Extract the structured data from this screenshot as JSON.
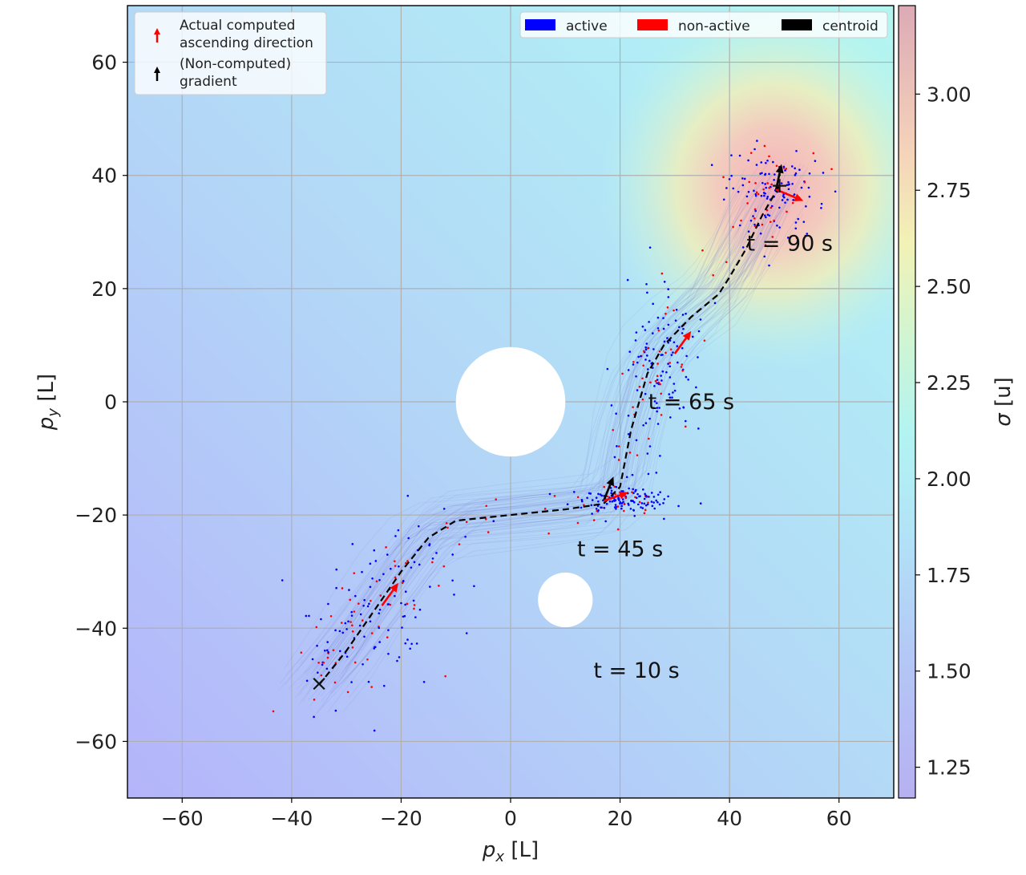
{
  "chart_data": {
    "type": "scatter",
    "xlabel": "p_x [L]",
    "ylabel": "p_y [L]",
    "colorbar_label": "σ [u]",
    "xlim": [
      -70,
      70
    ],
    "ylim": [
      -70,
      70
    ],
    "x_ticks": [
      -60,
      -40,
      -20,
      0,
      20,
      40,
      60
    ],
    "y_ticks": [
      -60,
      -40,
      -20,
      0,
      20,
      40,
      60
    ],
    "x_tick_labels": [
      "−60",
      "−40",
      "−20",
      "0",
      "20",
      "40",
      "60"
    ],
    "y_tick_labels": [
      "−60",
      "−40",
      "−20",
      "0",
      "20",
      "40",
      "60"
    ],
    "colorbar_range": [
      1.17,
      3.23
    ],
    "colorbar_ticks": [
      1.25,
      1.5,
      1.75,
      2.0,
      2.25,
      2.5,
      2.75,
      3.0
    ],
    "colorbar_tick_labels": [
      "1.25",
      "1.50",
      "1.75",
      "2.00",
      "2.25",
      "2.50",
      "2.75",
      "3.00"
    ],
    "grid": true,
    "field_peak": {
      "x": 48,
      "y": 38
    },
    "obstacles": [
      {
        "x": 0,
        "y": 0,
        "r": 10
      },
      {
        "x": 10,
        "y": -35,
        "r": 5
      }
    ],
    "start_marker": {
      "x": -35,
      "y": -50,
      "symbol": "×"
    },
    "centroid_path": {
      "name": "centroid",
      "x": [
        -35,
        -30,
        -25,
        -20,
        -15,
        -10,
        0,
        10,
        17,
        20,
        22,
        25,
        28,
        33,
        38,
        40,
        43,
        46,
        49
      ],
      "y": [
        -50,
        -44,
        -37,
        -30,
        -24,
        -21,
        -20,
        -19,
        -18,
        -15,
        -5,
        5,
        10,
        15,
        19,
        22,
        27,
        33,
        38
      ]
    },
    "snapshots": [
      {
        "label": "t = 10 s",
        "label_x": 23,
        "label_y": -47.5,
        "center_x": -25,
        "center_y": -38,
        "spread_x": 5,
        "spread_y": 5,
        "computed_direction": {
          "x": -23.5,
          "y": -36,
          "dx": 3,
          "dy": 4
        }
      },
      {
        "label": "t = 45 s",
        "label_x": 20,
        "label_y": -26,
        "center_x": 20,
        "center_y": -17.5,
        "spread_x": 4.5,
        "spread_y": 1.2,
        "computed_direction": {
          "x": 17,
          "y": -17.5,
          "dx": 4.5,
          "dy": 1.5
        },
        "gradient": {
          "x": 17,
          "y": -17.5,
          "dx": 1.8,
          "dy": 4.3
        }
      },
      {
        "label": "t = 65 s",
        "label_x": 33,
        "label_y": 0,
        "center_x": 27,
        "center_y": 7,
        "spread_x": 4,
        "spread_y": 6,
        "computed_direction": {
          "x": 30,
          "y": 8.5,
          "dx": 3,
          "dy": 4
        }
      },
      {
        "label": "t = 90 s",
        "label_x": 51,
        "label_y": 28,
        "center_x": 48,
        "center_y": 37,
        "spread_x": 5,
        "spread_y": 4,
        "computed_direction": {
          "x": 48.5,
          "y": 37.5,
          "dx": 5,
          "dy": -2
        },
        "gradient": {
          "x": 48.5,
          "y": 37.5,
          "dx": 1,
          "dy": 4.5
        }
      }
    ],
    "legend_left": {
      "placement": "top-left",
      "entries": [
        {
          "label_line1": "Actual computed",
          "label_line2": "ascending direction",
          "color": "#ff0000"
        },
        {
          "label_line1": "(Non-computed)",
          "label_line2": "gradient",
          "color": "#000000"
        }
      ]
    },
    "legend_right": {
      "placement": "top-right",
      "entries": [
        {
          "name": "active",
          "color": "#0000ff"
        },
        {
          "name": "non-active",
          "color": "#ff0000"
        },
        {
          "name": "centroid",
          "color": "#000000"
        }
      ]
    },
    "colors": {
      "active": "#0000ff",
      "non_active": "#ff0000",
      "centroid": "#000000",
      "trajectory": "#7d88d8",
      "grid": "#b0b0b0",
      "cmap_low": "#b4b4ff",
      "cmap_mid": "#b0f2f5",
      "cmap_yellow": "#f3f3b5",
      "cmap_high": "#f5b1b7"
    }
  }
}
